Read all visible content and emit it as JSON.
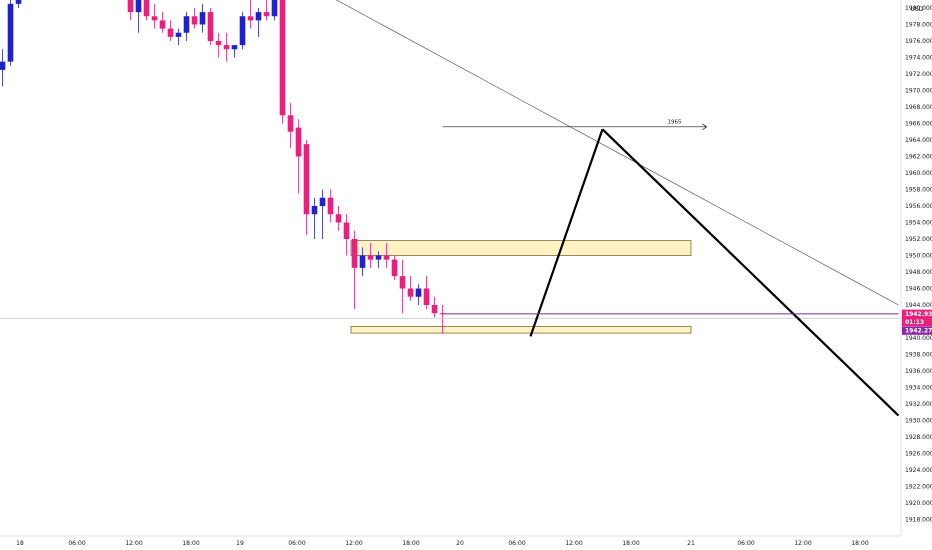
{
  "chart_data": {
    "type": "candlestick",
    "title": "",
    "currency": "USD",
    "colors": {
      "up": "#1e22c8",
      "down": "#e6227d",
      "zone_fill": "#fff3c4",
      "zone_stroke": "#6b5a1a",
      "price_line": "#7c2b96",
      "badge_top": "#e6227d",
      "badge_bottom": "#8e24aa"
    },
    "y_ticks": [
      "1982.000",
      "1980.000",
      "1978.000",
      "1976.000",
      "1974.000",
      "1972.000",
      "1970.000",
      "1968.000",
      "1966.000",
      "1964.000",
      "1962.000",
      "1960.000",
      "1958.000",
      "1956.000",
      "1954.000",
      "1952.000",
      "1950.000",
      "1948.000",
      "1946.000",
      "1944.000",
      "1942.000",
      "1940.000",
      "1938.000",
      "1936.000",
      "1934.000",
      "1932.000",
      "1930.000",
      "1928.000",
      "1926.000",
      "1924.000",
      "1922.000",
      "1920.000",
      "1918.000"
    ],
    "ylim": [
      1916.7,
      1983.5
    ],
    "x_ticks": [
      "18",
      "06:00",
      "12:00",
      "18:00",
      "19",
      "06:00",
      "12:00",
      "18:00",
      "20",
      "06:00",
      "12:00",
      "18:00",
      "21",
      "06:00",
      "12:00",
      "18:00"
    ],
    "candles": [
      {
        "t": 0,
        "o": 1972.5,
        "h": 1975.0,
        "l": 1970.5,
        "c": 1973.5
      },
      {
        "t": 1,
        "o": 1973.5,
        "h": 1982.0,
        "l": 1973.0,
        "c": 1980.5
      },
      {
        "t": 2,
        "o": 1980.5,
        "h": 1983.5,
        "l": 1980.0,
        "c": 1982.5
      },
      {
        "t": 16,
        "o": 1982.5,
        "h": 1983.5,
        "l": 1978.5,
        "c": 1979.5
      },
      {
        "t": 17,
        "o": 1979.5,
        "h": 1981.5,
        "l": 1977.0,
        "c": 1981.0
      },
      {
        "t": 18,
        "o": 1981.0,
        "h": 1981.5,
        "l": 1978.5,
        "c": 1979.0
      },
      {
        "t": 19,
        "o": 1979.0,
        "h": 1980.5,
        "l": 1977.5,
        "c": 1978.5
      },
      {
        "t": 20,
        "o": 1978.5,
        "h": 1979.5,
        "l": 1977.0,
        "c": 1977.5
      },
      {
        "t": 21,
        "o": 1977.5,
        "h": 1978.5,
        "l": 1976.0,
        "c": 1976.5
      },
      {
        "t": 22,
        "o": 1976.5,
        "h": 1977.5,
        "l": 1975.5,
        "c": 1977.0
      },
      {
        "t": 23,
        "o": 1977.0,
        "h": 1979.5,
        "l": 1976.0,
        "c": 1979.0
      },
      {
        "t": 24,
        "o": 1979.0,
        "h": 1980.0,
        "l": 1977.5,
        "c": 1978.0
      },
      {
        "t": 25,
        "o": 1978.0,
        "h": 1980.5,
        "l": 1977.0,
        "c": 1979.5
      },
      {
        "t": 26,
        "o": 1979.5,
        "h": 1980.0,
        "l": 1975.5,
        "c": 1976.0
      },
      {
        "t": 27,
        "o": 1976.0,
        "h": 1977.0,
        "l": 1974.0,
        "c": 1975.5
      },
      {
        "t": 28,
        "o": 1975.5,
        "h": 1977.0,
        "l": 1973.5,
        "c": 1975.0
      },
      {
        "t": 29,
        "o": 1975.0,
        "h": 1975.5,
        "l": 1974.0,
        "c": 1975.5
      },
      {
        "t": 30,
        "o": 1975.5,
        "h": 1979.5,
        "l": 1975.0,
        "c": 1979.0
      },
      {
        "t": 31,
        "o": 1979.0,
        "h": 1983.0,
        "l": 1977.5,
        "c": 1978.5
      },
      {
        "t": 32,
        "o": 1978.5,
        "h": 1980.0,
        "l": 1976.5,
        "c": 1979.5
      },
      {
        "t": 33,
        "o": 1979.5,
        "h": 1982.0,
        "l": 1978.5,
        "c": 1979.0
      },
      {
        "t": 34,
        "o": 1979.0,
        "h": 1983.0,
        "l": 1978.5,
        "c": 1981.0
      },
      {
        "t": 35,
        "o": 1981.0,
        "h": 1983.5,
        "l": 1966.0,
        "c": 1967.0
      },
      {
        "t": 36,
        "o": 1967.0,
        "h": 1968.5,
        "l": 1963.0,
        "c": 1965.0
      },
      {
        "t": 37,
        "o": 1965.5,
        "h": 1966.5,
        "l": 1957.5,
        "c": 1962.0
      },
      {
        "t": 38,
        "o": 1963.5,
        "h": 1964.0,
        "l": 1952.5,
        "c": 1955.0
      },
      {
        "t": 39,
        "o": 1955.0,
        "h": 1957.0,
        "l": 1952.0,
        "c": 1956.0
      },
      {
        "t": 40,
        "o": 1956.0,
        "h": 1958.0,
        "l": 1952.0,
        "c": 1957.0
      },
      {
        "t": 41,
        "o": 1957.0,
        "h": 1958.0,
        "l": 1954.0,
        "c": 1955.0
      },
      {
        "t": 42,
        "o": 1955.0,
        "h": 1956.0,
        "l": 1953.0,
        "c": 1954.0
      },
      {
        "t": 43,
        "o": 1954.0,
        "h": 1955.0,
        "l": 1950.0,
        "c": 1952.0
      },
      {
        "t": 44,
        "o": 1952.0,
        "h": 1953.0,
        "l": 1943.5,
        "c": 1948.5
      },
      {
        "t": 45,
        "o": 1948.5,
        "h": 1951.0,
        "l": 1947.5,
        "c": 1950.0
      },
      {
        "t": 46,
        "o": 1950.0,
        "h": 1951.5,
        "l": 1948.5,
        "c": 1949.5
      },
      {
        "t": 47,
        "o": 1949.5,
        "h": 1950.5,
        "l": 1948.5,
        "c": 1950.0
      },
      {
        "t": 48,
        "o": 1950.0,
        "h": 1951.5,
        "l": 1948.5,
        "c": 1949.5
      },
      {
        "t": 49,
        "o": 1949.5,
        "h": 1950.0,
        "l": 1947.0,
        "c": 1947.5
      },
      {
        "t": 50,
        "o": 1947.5,
        "h": 1949.5,
        "l": 1943.0,
        "c": 1946.0
      },
      {
        "t": 51,
        "o": 1946.0,
        "h": 1947.5,
        "l": 1944.5,
        "c": 1945.0
      },
      {
        "t": 52,
        "o": 1945.0,
        "h": 1946.5,
        "l": 1944.0,
        "c": 1946.0
      },
      {
        "t": 53,
        "o": 1946.0,
        "h": 1947.5,
        "l": 1943.5,
        "c": 1944.0
      },
      {
        "t": 54,
        "o": 1944.0,
        "h": 1945.0,
        "l": 1942.5,
        "c": 1943.0
      },
      {
        "t": 55,
        "o": 1943.0,
        "h": 1944.0,
        "l": 1940.5,
        "c": 1942.9
      }
    ],
    "zones": [
      {
        "name": "resistance-zone",
        "t0": 44,
        "t1": 86,
        "p_low": 1950.0,
        "p_high": 1951.8
      },
      {
        "name": "support-zone",
        "t0": 44,
        "t1": 86,
        "p_low": 1940.6,
        "p_high": 1941.4
      }
    ],
    "lines": [
      {
        "name": "descending-trendline",
        "points": [
          [
            36,
            1984.0
          ],
          [
            112,
            1944.0
          ]
        ],
        "width": 0.6,
        "color": "#444444"
      },
      {
        "name": "level-1965-line",
        "points": [
          [
            55,
            1965.6
          ],
          [
            88,
            1965.6
          ]
        ],
        "width": 0.7,
        "color": "#131722",
        "arrow": true
      },
      {
        "name": "projection-up-leg",
        "points": [
          [
            66,
            1940.2
          ],
          [
            75,
            1965.3
          ]
        ],
        "width": 2.2,
        "color": "#000000"
      },
      {
        "name": "projection-down-leg",
        "points": [
          [
            75,
            1965.3
          ],
          [
            112,
            1930.6
          ]
        ],
        "width": 2.2,
        "color": "#000000"
      },
      {
        "name": "current-price-line",
        "points": [
          [
            55,
            1942.93
          ],
          [
            112,
            1942.93
          ]
        ],
        "width": 1,
        "color": "#7c2b96"
      }
    ],
    "annotations": [
      {
        "name": "level-label",
        "text": "1965",
        "t": 84,
        "p": 1966.0
      }
    ],
    "price_badges": [
      {
        "name": "last-price-badge",
        "text": "1942.930",
        "p": 1942.93,
        "role": "top"
      },
      {
        "name": "countdown-badge",
        "text": "01:13",
        "p": 1941.95,
        "role": "middle"
      },
      {
        "name": "bid-badge",
        "text": "1942.270",
        "p": 1940.9,
        "role": "bottom"
      }
    ],
    "crosshair_price": 1942.4,
    "grid": false,
    "legend": "none"
  }
}
